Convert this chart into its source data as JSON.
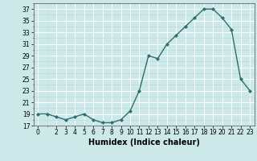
{
  "x": [
    0,
    1,
    2,
    3,
    4,
    5,
    6,
    7,
    8,
    9,
    10,
    11,
    12,
    13,
    14,
    15,
    16,
    17,
    18,
    19,
    20,
    21,
    22,
    23
  ],
  "y": [
    19,
    19,
    18.5,
    18,
    18.5,
    19,
    18,
    17.5,
    17.5,
    18,
    19.5,
    23,
    29,
    28.5,
    31,
    32.5,
    34,
    35.5,
    37,
    37,
    35.5,
    33.5,
    25,
    23
  ],
  "line_color": "#2d6e6e",
  "marker": "D",
  "marker_size": 2.0,
  "bg_color": "#cce8e8",
  "grid_major_color": "#ffffff",
  "grid_minor_color": "#b8dada",
  "xlabel": "Humidex (Indice chaleur)",
  "xlabel_fontsize": 7,
  "ylim": [
    17,
    38
  ],
  "xlim": [
    -0.5,
    23.5
  ],
  "yticks": [
    17,
    19,
    21,
    23,
    25,
    27,
    29,
    31,
    33,
    35,
    37
  ],
  "xticks": [
    0,
    2,
    3,
    4,
    5,
    6,
    7,
    8,
    9,
    10,
    11,
    12,
    13,
    14,
    15,
    16,
    17,
    18,
    19,
    20,
    21,
    22,
    23
  ],
  "tick_fontsize": 5.5,
  "line_width": 1.0
}
